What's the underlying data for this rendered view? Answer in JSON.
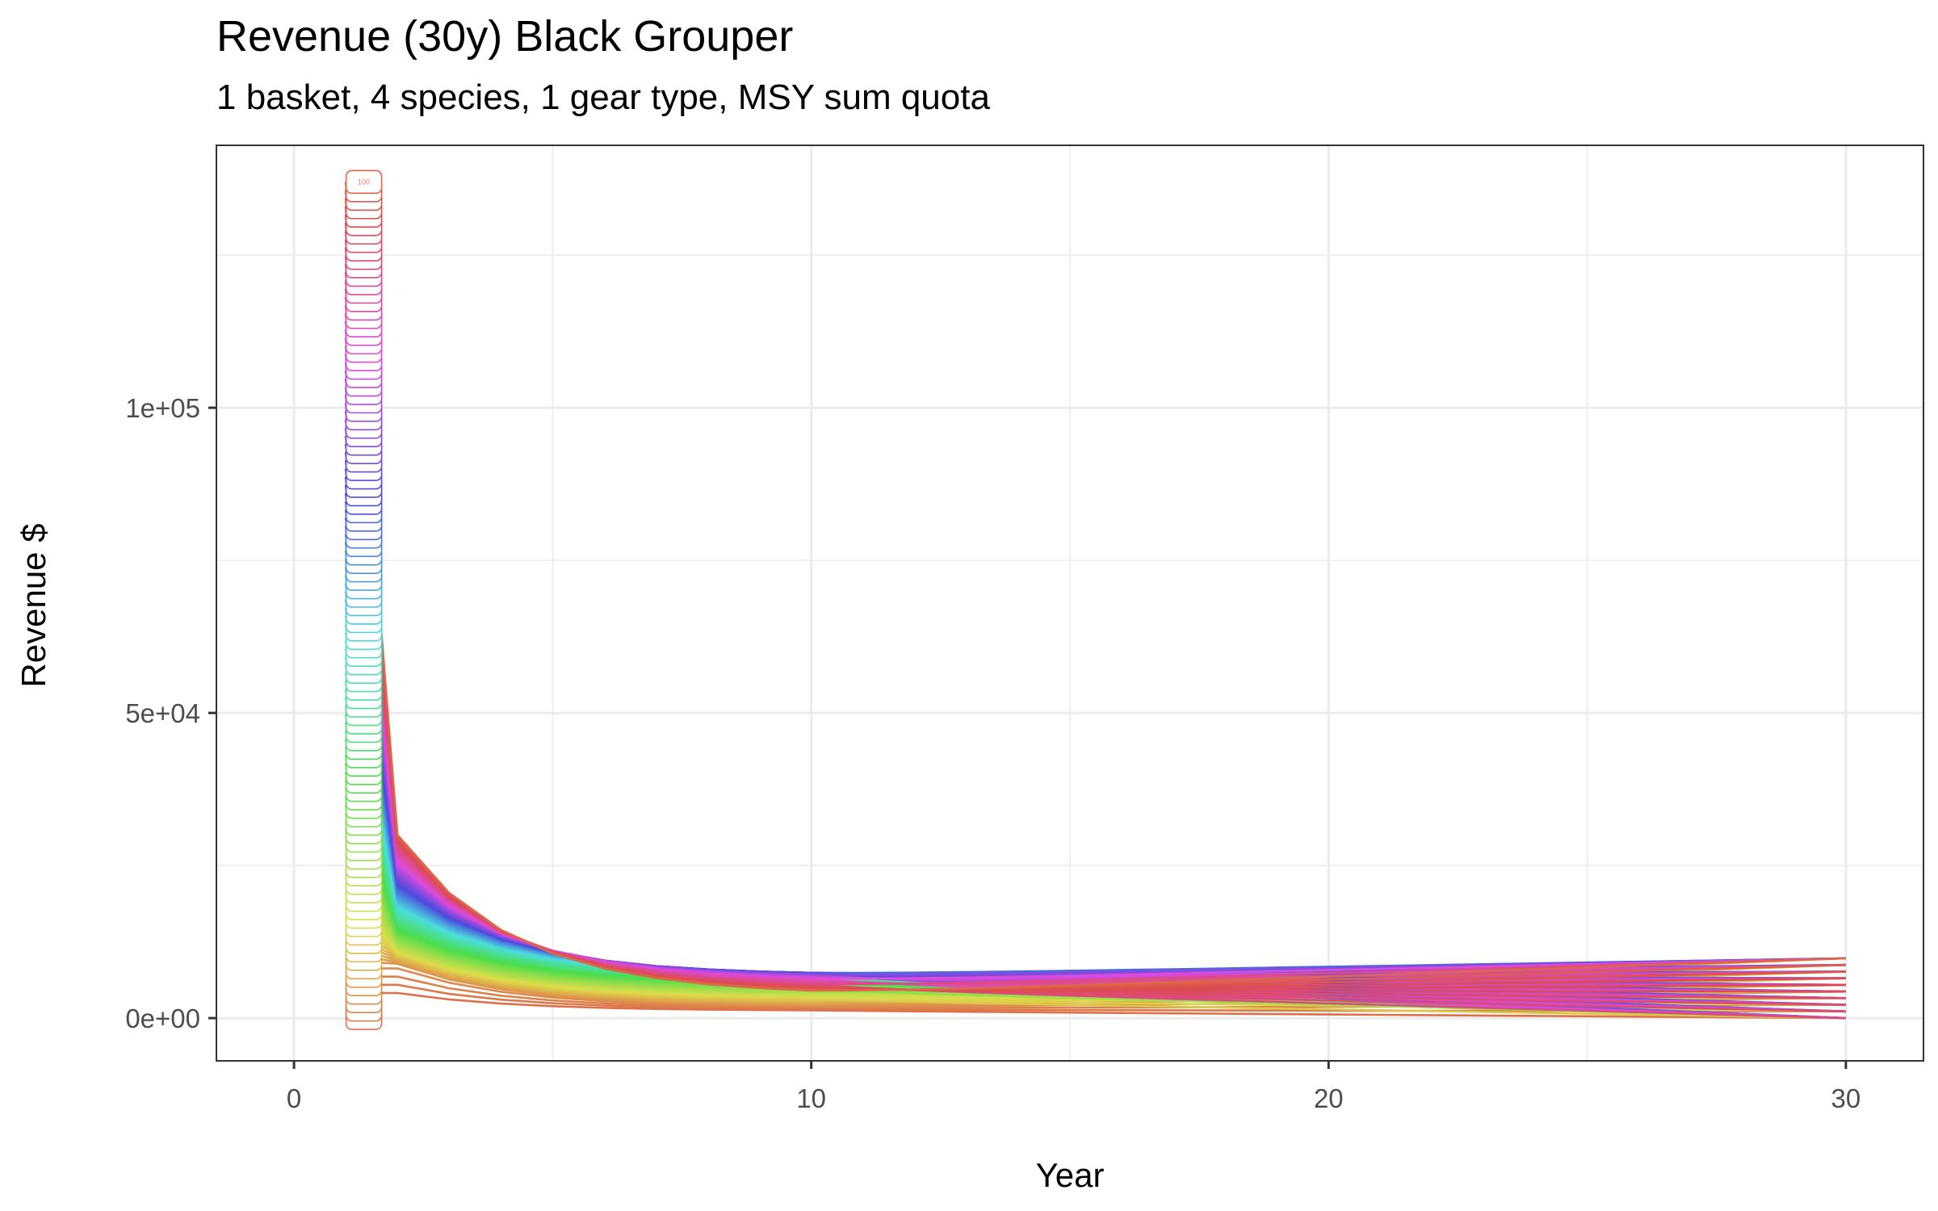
{
  "chart_data": {
    "type": "line",
    "title": "Revenue (30y) Black Grouper",
    "subtitle": "1 basket, 4 species, 1 gear type, MSY sum quota",
    "xlabel": "Year",
    "ylabel": "Revenue $",
    "xlim": [
      -1.5,
      31.5
    ],
    "ylim": [
      -7000,
      143000
    ],
    "x_ticks": [
      0,
      10,
      20,
      30
    ],
    "x_tick_labels": [
      "0",
      "10",
      "20",
      "30"
    ],
    "x_minor_ticks": [
      5,
      15,
      25
    ],
    "y_ticks": [
      0,
      50000,
      100000
    ],
    "y_tick_labels": [
      "0e+00",
      "5e+04",
      "1e+05"
    ],
    "y_minor_ticks": [
      25000,
      75000,
      125000
    ],
    "grid": true,
    "legend": "none",
    "series_count": 100,
    "series_label_example": "100",
    "series_label_year": 1.35,
    "series_year1_range": [
      0,
      137000
    ],
    "series_year30_range": [
      0,
      9800
    ],
    "colors": {
      "series_start": "#F8766D",
      "series_mid": "#00BFC4",
      "series_end": "#FF61C3",
      "grid": "#ebebeb",
      "panel_border": "#333333",
      "tick_text": "#4d4d4d"
    }
  }
}
